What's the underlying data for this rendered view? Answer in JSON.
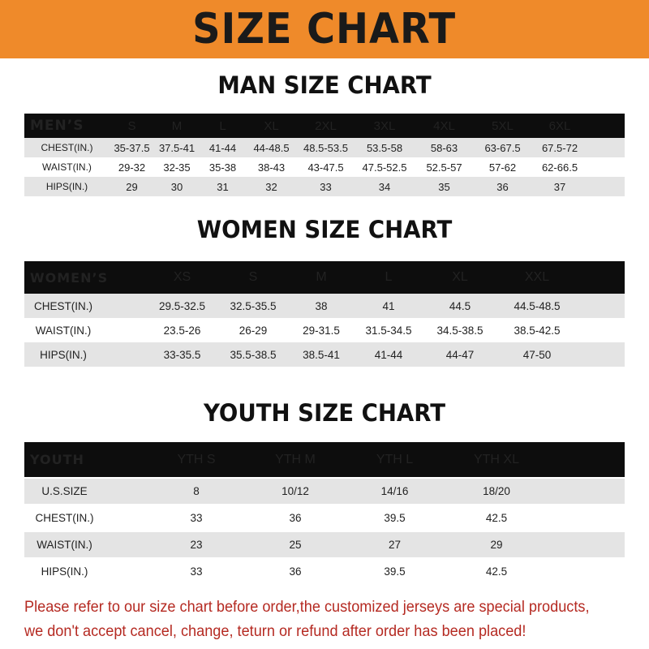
{
  "banner": {
    "title": "SIZE CHART",
    "color": "#ef8a2a"
  },
  "men": {
    "title": "MAN SIZE CHART",
    "header_label": "MEN’S",
    "sizes": [
      "S",
      "M",
      "L",
      "XL",
      "2XL",
      "3XL",
      "4XL",
      "5XL",
      "6XL"
    ],
    "rows": [
      {
        "label": "CHEST(IN.)",
        "values": [
          "35-37.5",
          "37.5-41",
          "41-44",
          "44-48.5",
          "48.5-53.5",
          "53.5-58",
          "58-63",
          "63-67.5",
          "67.5-72"
        ]
      },
      {
        "label": "WAIST(IN.)",
        "values": [
          "29-32",
          "32-35",
          "35-38",
          "38-43",
          "43-47.5",
          "47.5-52.5",
          "52.5-57",
          "57-62",
          "62-66.5"
        ]
      },
      {
        "label": "HIPS(IN.)",
        "values": [
          "29",
          "30",
          "31",
          "32",
          "33",
          "34",
          "35",
          "36",
          "37"
        ]
      }
    ]
  },
  "women": {
    "title": "WOMEN SIZE CHART",
    "header_label": "WOMEN’S",
    "sizes": [
      "XS",
      "S",
      "M",
      "L",
      "XL",
      "XXL"
    ],
    "rows": [
      {
        "label": "CHEST(IN.)",
        "values": [
          "29.5-32.5",
          "32.5-35.5",
          "38",
          "41",
          "44.5",
          "44.5-48.5"
        ]
      },
      {
        "label": "WAIST(IN.)",
        "values": [
          "23.5-26",
          "26-29",
          "29-31.5",
          "31.5-34.5",
          "34.5-38.5",
          "38.5-42.5"
        ]
      },
      {
        "label": "HIPS(IN.)",
        "values": [
          "33-35.5",
          "35.5-38.5",
          "38.5-41",
          "41-44",
          "44-47",
          "47-50"
        ]
      }
    ]
  },
  "youth": {
    "title": "YOUTH SIZE CHART",
    "header_label": "YOUTH",
    "sizes": [
      "YTH S",
      "YTH M",
      "YTH L",
      "YTH XL"
    ],
    "rows": [
      {
        "label": "U.S.SIZE",
        "values": [
          "8",
          "10/12",
          "14/16",
          "18/20"
        ]
      },
      {
        "label": "CHEST(IN.)",
        "values": [
          "33",
          "36",
          "39.5",
          "42.5"
        ]
      },
      {
        "label": "WAIST(IN.)",
        "values": [
          "23",
          "25",
          "27",
          "29"
        ]
      },
      {
        "label": "HIPS(IN.)",
        "values": [
          "33",
          "36",
          "39.5",
          "42.5"
        ]
      }
    ]
  },
  "note": {
    "line1": "Please refer to our size chart before order,the customized jerseys are special products,",
    "line2": "we don't accept cancel, change, teturn or refund after order has been placed!",
    "color": "#b52a22"
  }
}
